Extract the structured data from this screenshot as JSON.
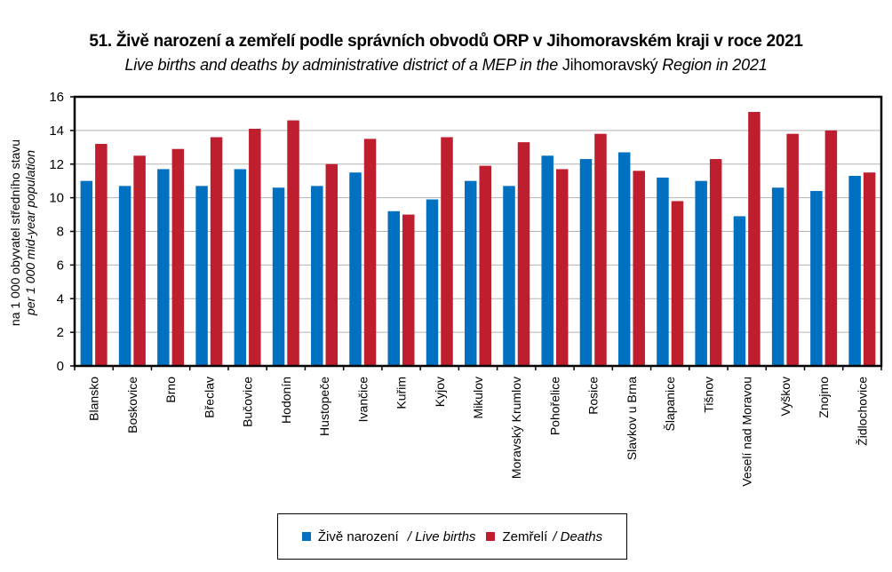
{
  "chart_data": {
    "type": "bar",
    "title": "51. Živě narození a zemřelí podle správních obvodů ORP v Jihomoravském kraji v roce 2021",
    "subtitle_parts": [
      {
        "text": "Live births and deaths by administrative district of a MEP in the ",
        "italic": true
      },
      {
        "text": "Jihomoravský",
        "italic": false
      },
      {
        "text": " Region in 2021",
        "italic": true
      }
    ],
    "ylabel": "na 1 000 obyvatel středního stavu",
    "ylabel_en": "per 1 000  mid-year population",
    "xlabel": "",
    "ylim": [
      0,
      16
    ],
    "yticks": [
      0,
      2,
      4,
      6,
      8,
      10,
      12,
      14,
      16
    ],
    "grid": true,
    "legend_position": "bottom",
    "categories": [
      "Blansko",
      "Boskovice",
      "Brno",
      "Břeclav",
      "Bučovice",
      "Hodonín",
      "Hustopeče",
      "Ivančice",
      "Kuřim",
      "Kyjov",
      "Mikulov",
      "Moravský Krumlov",
      "Pohořelice",
      "Rosice",
      "Slavkov u Brna",
      "Šlapanice",
      "Tišnov",
      "Veselí nad Moravou",
      "Vyškov",
      "Znojmo",
      "Židlochovice"
    ],
    "series": [
      {
        "name": "Živě narození",
        "name_en": "/ Live births",
        "color": "#0070C0",
        "values": [
          11.0,
          10.7,
          11.7,
          10.7,
          11.7,
          10.6,
          10.7,
          11.5,
          9.2,
          9.9,
          11.0,
          10.7,
          12.5,
          12.3,
          12.7,
          11.2,
          11.0,
          8.9,
          10.6,
          10.4,
          11.3
        ]
      },
      {
        "name": "Zemřelí",
        "name_en": "/ Deaths",
        "color": "#BE1E2D",
        "values": [
          13.2,
          12.5,
          12.9,
          13.6,
          14.1,
          14.6,
          12.0,
          13.5,
          9.0,
          13.6,
          11.9,
          13.3,
          11.7,
          13.8,
          11.6,
          9.8,
          12.3,
          15.1,
          13.8,
          14.0,
          11.5
        ]
      }
    ]
  }
}
